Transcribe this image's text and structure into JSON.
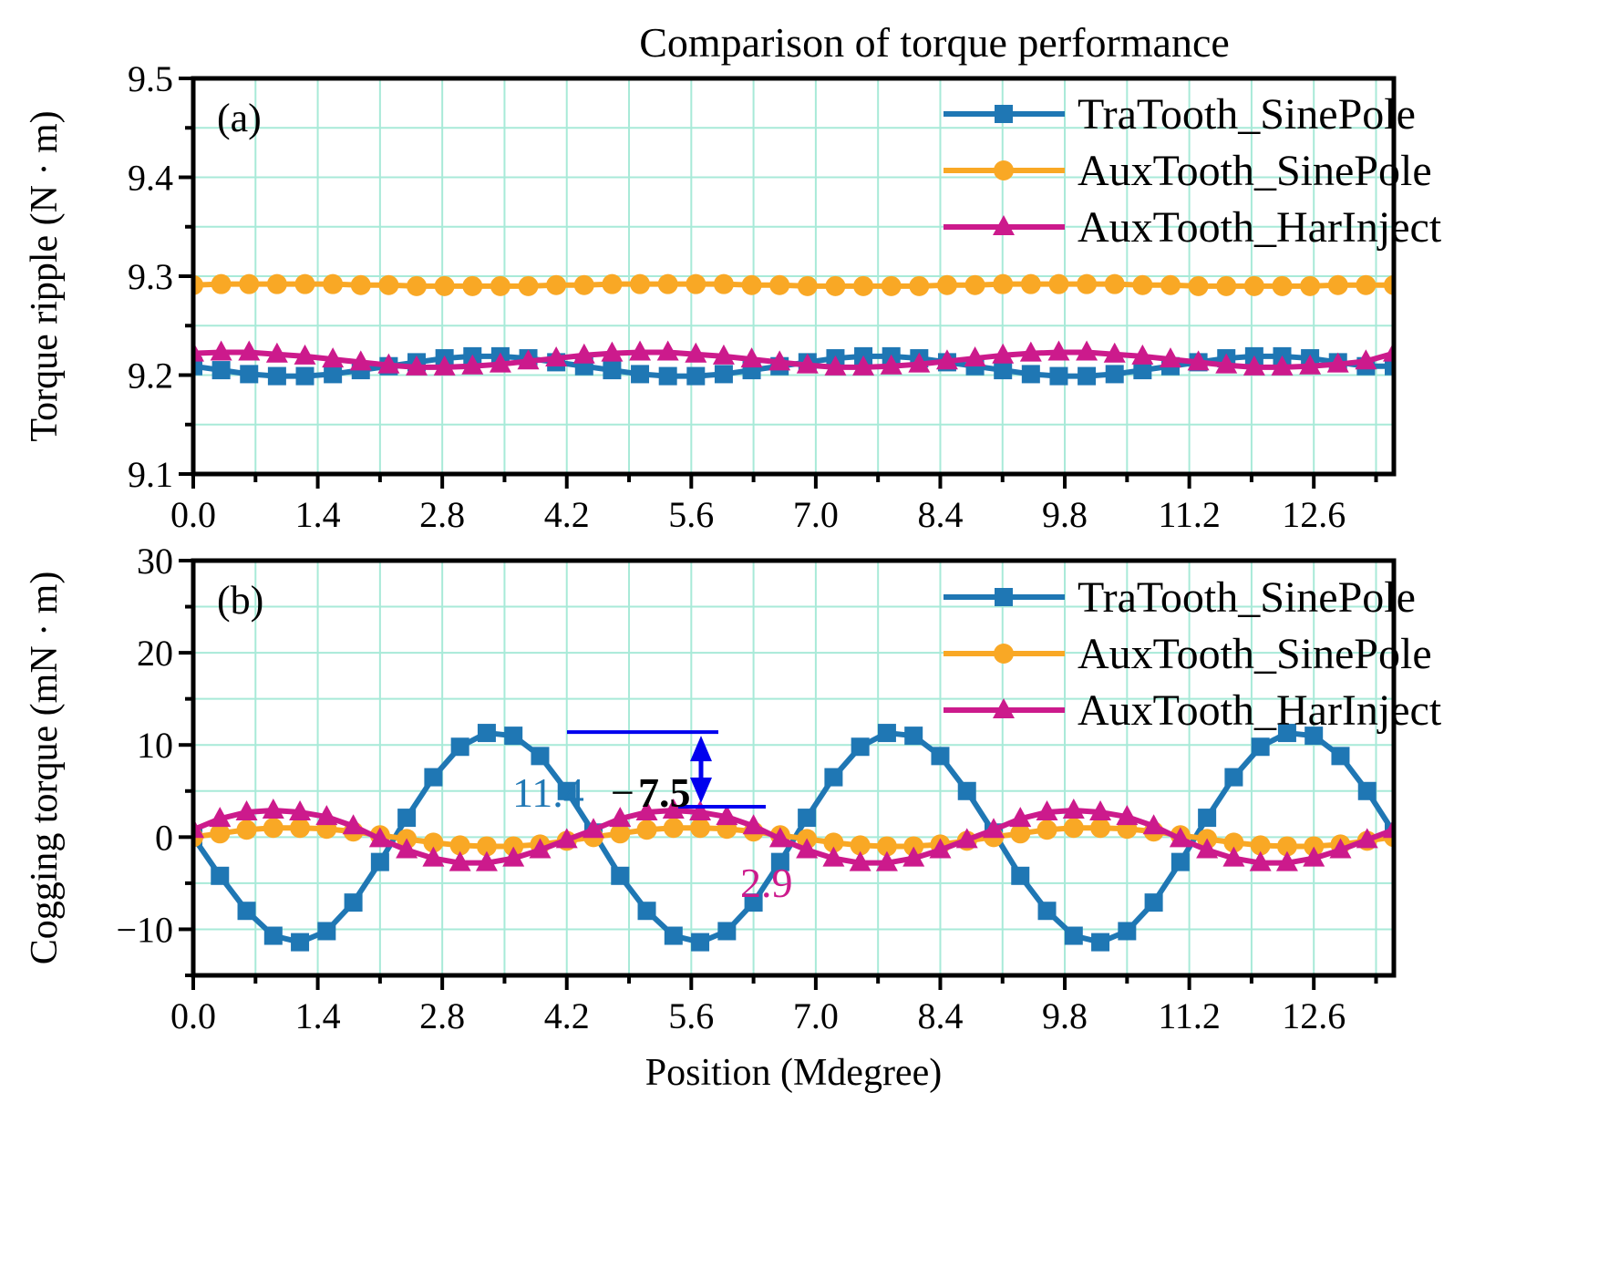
{
  "title": "Comparison of torque performance",
  "colors": {
    "TraTooth_SinePole": "#1f77b4",
    "AuxTooth_SinePole": "#f9a825",
    "AuxTooth_HarInject": "#cc1a8c",
    "grid": "#a8ead8",
    "arrow": "#0000ee"
  },
  "chart_data": [
    {
      "type": "line",
      "panel_label": "(a)",
      "ylabel": "Torque ripple (N · m)",
      "xlabel": "",
      "xlim": [
        0,
        13.5
      ],
      "ylim": [
        9.1,
        9.5
      ],
      "xticks": [
        "0.0",
        "1.4",
        "2.8",
        "4.2",
        "5.6",
        "7.0",
        "8.4",
        "9.8",
        "11.2",
        "12.6"
      ],
      "yticks": [
        "9.1",
        "9.2",
        "9.3",
        "9.4",
        "9.5"
      ],
      "grid": true,
      "legend_position": "top-right",
      "series": [
        {
          "name": "TraTooth_SinePole",
          "marker": "square",
          "values": [
            9.209,
            9.205,
            9.201,
            9.199,
            9.199,
            9.201,
            9.205,
            9.209,
            9.213,
            9.217,
            9.219,
            9.219,
            9.217,
            9.213,
            9.209,
            9.205,
            9.201,
            9.199,
            9.199,
            9.201,
            9.205,
            9.209,
            9.213,
            9.217,
            9.219,
            9.219,
            9.217,
            9.213,
            9.209,
            9.205,
            9.201,
            9.199,
            9.199,
            9.201,
            9.205,
            9.209,
            9.213,
            9.217,
            9.219,
            9.219,
            9.217,
            9.213,
            9.209,
            9.209
          ]
        },
        {
          "name": "AuxTooth_SinePole",
          "marker": "circle",
          "values": [
            9.291,
            9.292,
            9.292,
            9.292,
            9.292,
            9.292,
            9.291,
            9.291,
            9.29,
            9.29,
            9.29,
            9.29,
            9.29,
            9.291,
            9.291,
            9.292,
            9.292,
            9.292,
            9.292,
            9.292,
            9.291,
            9.291,
            9.29,
            9.29,
            9.29,
            9.29,
            9.29,
            9.291,
            9.291,
            9.292,
            9.292,
            9.292,
            9.292,
            9.292,
            9.291,
            9.291,
            9.29,
            9.29,
            9.29,
            9.29,
            9.29,
            9.291,
            9.291,
            9.291
          ]
        },
        {
          "name": "AuxTooth_HarInject",
          "marker": "triangle",
          "values": [
            9.222,
            9.223,
            9.223,
            9.221,
            9.219,
            9.216,
            9.213,
            9.21,
            9.208,
            9.208,
            9.209,
            9.211,
            9.214,
            9.217,
            9.22,
            9.222,
            9.223,
            9.223,
            9.221,
            9.219,
            9.216,
            9.213,
            9.21,
            9.208,
            9.208,
            9.209,
            9.211,
            9.214,
            9.217,
            9.22,
            9.222,
            9.223,
            9.223,
            9.221,
            9.219,
            9.216,
            9.213,
            9.21,
            9.208,
            9.208,
            9.209,
            9.211,
            9.214,
            9.222
          ]
        }
      ]
    },
    {
      "type": "line",
      "panel_label": "(b)",
      "ylabel": "Cogging torque (mN · m)",
      "xlabel": "Position (Mdegree)",
      "xlim": [
        0,
        13.5
      ],
      "ylim": [
        -15,
        30
      ],
      "xticks": [
        "0.0",
        "1.4",
        "2.8",
        "4.2",
        "5.6",
        "7.0",
        "8.4",
        "9.8",
        "11.2",
        "12.6"
      ],
      "yticks": [
        "−10",
        "0",
        "10",
        "20",
        "30"
      ],
      "grid": true,
      "legend_position": "top-right",
      "annotations": {
        "peak_blue": "11.4",
        "minus": "−",
        "reduction": "7.5",
        "peak_magenta": "2.9"
      },
      "series": [
        {
          "name": "TraTooth_SinePole",
          "marker": "square",
          "values": [
            0,
            -4.2,
            -8.0,
            -10.7,
            -11.4,
            -10.2,
            -7.1,
            -2.7,
            2.1,
            6.5,
            9.8,
            11.3,
            11.0,
            8.8,
            5.0,
            0.5,
            -4.2,
            -8.0,
            -10.7,
            -11.4,
            -10.2,
            -7.1,
            -2.7,
            2.1,
            6.5,
            9.8,
            11.3,
            11.0,
            8.8,
            5.0,
            0.5,
            -4.2,
            -8.0,
            -10.7,
            -11.4,
            -10.2,
            -7.1,
            -2.7,
            2.1,
            6.5,
            9.8,
            11.3,
            11.0,
            8.8,
            5.0,
            0.5
          ]
        },
        {
          "name": "AuxTooth_SinePole",
          "marker": "circle",
          "values": [
            0,
            0.4,
            0.8,
            1.0,
            1.0,
            0.9,
            0.6,
            0.2,
            -0.2,
            -0.6,
            -0.9,
            -1.0,
            -1.0,
            -0.8,
            -0.4,
            0,
            0.4,
            0.8,
            1.0,
            1.0,
            0.9,
            0.6,
            0.2,
            -0.2,
            -0.6,
            -0.9,
            -1.0,
            -1.0,
            -0.8,
            -0.4,
            0,
            0.4,
            0.8,
            1.0,
            1.0,
            0.9,
            0.6,
            0.2,
            -0.2,
            -0.6,
            -0.9,
            -1.0,
            -1.0,
            -0.8,
            -0.4,
            0
          ]
        },
        {
          "name": "AuxTooth_HarInject",
          "marker": "triangle",
          "values": [
            0.8,
            2.0,
            2.7,
            2.9,
            2.7,
            2.2,
            1.2,
            -0.2,
            -1.4,
            -2.3,
            -2.8,
            -2.8,
            -2.3,
            -1.4,
            -0.3,
            0.8,
            2.0,
            2.7,
            2.9,
            2.7,
            2.2,
            1.2,
            -0.2,
            -1.4,
            -2.3,
            -2.8,
            -2.8,
            -2.3,
            -1.4,
            -0.3,
            0.8,
            2.0,
            2.7,
            2.9,
            2.7,
            2.2,
            1.2,
            -0.2,
            -1.4,
            -2.3,
            -2.8,
            -2.8,
            -2.3,
            -1.4,
            -0.3,
            0.8
          ]
        }
      ]
    }
  ]
}
